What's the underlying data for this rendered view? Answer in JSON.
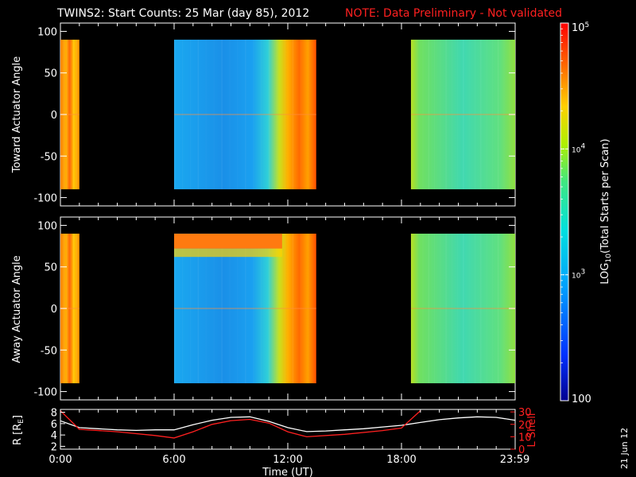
{
  "title": "TWINS2: Start Counts: 25 Mar (day  85), 2012",
  "note": "NOTE: Data Preliminary - Not validated",
  "date_stamp": "21 Jun 12",
  "colors": {
    "background": "#000000",
    "note": "#ff2020",
    "r_line": "#ffffff",
    "lshell_line": "#ff2020"
  },
  "chart_data": [
    {
      "type": "heatmap",
      "ylabel": "Toward Actuator Angle",
      "xlim": [
        0,
        24
      ],
      "ylim": [
        -110,
        110
      ],
      "yticks": [
        100,
        50,
        0,
        -50,
        -100
      ],
      "data_y_range": [
        -90,
        90
      ],
      "segments": [
        {
          "t_start": 0.0,
          "t_end": 1.0,
          "level": "high"
        },
        {
          "t_start": 6.0,
          "t_end": 13.5,
          "level": "low-to-high"
        },
        {
          "t_start": 18.5,
          "t_end": 24.0,
          "level": "mid"
        }
      ]
    },
    {
      "type": "heatmap",
      "ylabel": "Away Actuator Angle",
      "xlim": [
        0,
        24
      ],
      "ylim": [
        -110,
        110
      ],
      "yticks": [
        100,
        50,
        0,
        -50,
        -100
      ],
      "data_y_range": [
        -90,
        90
      ],
      "segments": [
        {
          "t_start": 0.0,
          "t_end": 1.0,
          "level": "high"
        },
        {
          "t_start": 6.0,
          "t_end": 13.5,
          "level": "low-to-high"
        },
        {
          "t_start": 18.5,
          "t_end": 24.0,
          "level": "mid"
        }
      ]
    },
    {
      "type": "line",
      "ylabel_left": "R (RE)",
      "ylabel_left_main": "R [R",
      "ylabel_left_sub": "E",
      "ylabel_left_close": "]",
      "ylabel_right": "L Shell",
      "xlabel": "Time (UT)",
      "xticks": [
        "0:00",
        "6:00",
        "12:00",
        "18:00",
        "23:59"
      ],
      "xtick_values": [
        0,
        6,
        12,
        18,
        23.98
      ],
      "yticks_left": [
        8,
        6,
        4,
        2
      ],
      "yticks_right": [
        30,
        20,
        10,
        0
      ],
      "ylim_left": [
        1.5,
        8.5
      ],
      "ylim_right": [
        0,
        32
      ],
      "series": [
        {
          "axis": "left",
          "x": [
            0,
            1,
            2,
            3,
            4,
            5,
            6,
            7,
            8,
            9,
            10,
            11,
            12,
            13,
            14,
            15,
            16,
            17,
            18,
            19,
            20,
            21,
            22,
            23,
            24
          ],
          "y": [
            6.5,
            5.3,
            5.1,
            4.9,
            4.8,
            4.9,
            4.9,
            5.8,
            6.6,
            7.1,
            7.2,
            6.4,
            5.3,
            4.6,
            4.7,
            4.9,
            5.1,
            5.4,
            5.7,
            6.2,
            6.7,
            7.0,
            7.2,
            7.1,
            6.6
          ]
        },
        {
          "axis": "right",
          "x": [
            0,
            1,
            3,
            5,
            6,
            7,
            8,
            9,
            10,
            11,
            12,
            13,
            15,
            17,
            18,
            19
          ],
          "y": [
            31,
            16,
            14,
            11,
            9,
            14,
            20,
            23,
            24,
            21,
            14,
            10,
            12,
            15,
            17,
            31
          ]
        }
      ]
    },
    {
      "type": "colorbar",
      "label_main": "LOG",
      "label_sub": "10",
      "label_rest": "(Total Starts per Scan)",
      "tick_labels": [
        "10",
        "10",
        "10",
        "100"
      ],
      "tick_exponents": [
        "5",
        "4",
        "3",
        ""
      ],
      "tick_values": [
        100000,
        10000,
        1000,
        100
      ],
      "range": [
        100,
        100000
      ]
    }
  ]
}
